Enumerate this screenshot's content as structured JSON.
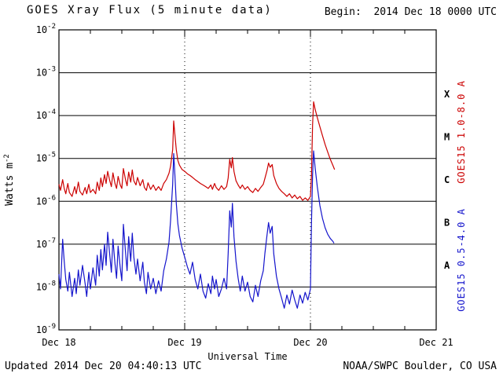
{
  "header": {
    "title": "GOES Xray Flux (5 minute data)",
    "begin": "Begin:  2014 Dec 18 0000 UTC"
  },
  "footer": {
    "updated": "Updated 2014 Dec 20 04:40:13 UTC",
    "source": "NOAA/SWPC Boulder, CO USA"
  },
  "chart_data": {
    "type": "line",
    "title": "GOES Xray Flux (5 minute data)",
    "xlabel": "Universal Time",
    "ylabel": "Watts m-2",
    "ylabel_parts": [
      "Watts m",
      "-2"
    ],
    "y_tick_base": "10",
    "y_tick_exponents": [
      -2,
      -3,
      -4,
      -5,
      -6,
      -7,
      -8,
      -9
    ],
    "y_log_range": [
      -9,
      -2
    ],
    "x_range_hours": [
      0,
      72
    ],
    "x_tick_hours": [
      0,
      24,
      48,
      72
    ],
    "x_ticks": [
      "Dec 18",
      "Dec 19",
      "Dec 20",
      "Dec 21"
    ],
    "day_boundary_lines_hours": [
      24,
      48
    ],
    "flare_class_labels": [
      "X",
      "M",
      "C",
      "B",
      "A"
    ],
    "flare_class_mid_exponents": [
      -3.5,
      -4.5,
      -5.5,
      -6.5,
      -7.5
    ],
    "legend_position": "right",
    "grid": "horizontal-solid, day-boundaries-dotted",
    "series": [
      {
        "name": "GOES15 1.0-8.0 A",
        "color": "#cc0000",
        "points": [
          [
            0,
            2.5e-06
          ],
          [
            0.3,
            1.8e-06
          ],
          [
            0.7,
            3.2e-06
          ],
          [
            1,
            2e-06
          ],
          [
            1.3,
            1.5e-06
          ],
          [
            1.7,
            2.6e-06
          ],
          [
            2,
            1.6e-06
          ],
          [
            2.5,
            1.3e-06
          ],
          [
            3,
            2.2e-06
          ],
          [
            3.3,
            1.5e-06
          ],
          [
            3.7,
            2.8e-06
          ],
          [
            4,
            1.7e-06
          ],
          [
            4.5,
            1.4e-06
          ],
          [
            5,
            2.1e-06
          ],
          [
            5.3,
            1.5e-06
          ],
          [
            5.7,
            2.5e-06
          ],
          [
            6,
            1.6e-06
          ],
          [
            6.5,
            1.9e-06
          ],
          [
            7,
            1.5e-06
          ],
          [
            7.3,
            2.8e-06
          ],
          [
            7.7,
            1.8e-06
          ],
          [
            8,
            3.5e-06
          ],
          [
            8.3,
            2.2e-06
          ],
          [
            8.7,
            4.2e-06
          ],
          [
            9,
            2.6e-06
          ],
          [
            9.3,
            5e-06
          ],
          [
            9.7,
            3e-06
          ],
          [
            10,
            2.2e-06
          ],
          [
            10.3,
            4.6e-06
          ],
          [
            10.7,
            2.6e-06
          ],
          [
            11,
            2e-06
          ],
          [
            11.3,
            3.8e-06
          ],
          [
            11.7,
            2.4e-06
          ],
          [
            12,
            2e-06
          ],
          [
            12.3,
            5.8e-06
          ],
          [
            12.7,
            3.2e-06
          ],
          [
            13,
            2.3e-06
          ],
          [
            13.3,
            4.8e-06
          ],
          [
            13.7,
            2.8e-06
          ],
          [
            14,
            5.4e-06
          ],
          [
            14.3,
            3e-06
          ],
          [
            14.7,
            2.4e-06
          ],
          [
            15,
            3.6e-06
          ],
          [
            15.5,
            2.3e-06
          ],
          [
            16,
            3.2e-06
          ],
          [
            16.3,
            2.1e-06
          ],
          [
            16.7,
            1.8e-06
          ],
          [
            17,
            2.7e-06
          ],
          [
            17.5,
            1.9e-06
          ],
          [
            18,
            2.4e-06
          ],
          [
            18.5,
            1.8e-06
          ],
          [
            19,
            2.2e-06
          ],
          [
            19.5,
            1.8e-06
          ],
          [
            20,
            2.6e-06
          ],
          [
            20.5,
            3.2e-06
          ],
          [
            21,
            4.5e-06
          ],
          [
            21.3,
            6.5e-06
          ],
          [
            21.7,
            1.6e-05
          ],
          [
            21.9,
            7.5e-05
          ],
          [
            22.1,
            4e-05
          ],
          [
            22.4,
            1.6e-05
          ],
          [
            22.7,
            9e-06
          ],
          [
            23,
            7e-06
          ],
          [
            23.5,
            5.5e-06
          ],
          [
            24,
            5e-06
          ],
          [
            24.5,
            4.4e-06
          ],
          [
            25,
            4e-06
          ],
          [
            25.5,
            3.6e-06
          ],
          [
            26,
            3.2e-06
          ],
          [
            26.5,
            2.9e-06
          ],
          [
            27,
            2.6e-06
          ],
          [
            27.5,
            2.4e-06
          ],
          [
            28,
            2.2e-06
          ],
          [
            28.5,
            2e-06
          ],
          [
            29,
            2.4e-06
          ],
          [
            29.3,
            1.9e-06
          ],
          [
            29.7,
            2.6e-06
          ],
          [
            30,
            2.1e-06
          ],
          [
            30.5,
            1.8e-06
          ],
          [
            31,
            2.3e-06
          ],
          [
            31.5,
            1.9e-06
          ],
          [
            32,
            2.2e-06
          ],
          [
            32.3,
            3.5e-06
          ],
          [
            32.6,
            9.5e-06
          ],
          [
            32.9,
            6e-06
          ],
          [
            33.1,
            1.05e-05
          ],
          [
            33.4,
            5e-06
          ],
          [
            33.8,
            3e-06
          ],
          [
            34.2,
            2.4e-06
          ],
          [
            34.6,
            2e-06
          ],
          [
            35,
            2.4e-06
          ],
          [
            35.5,
            1.9e-06
          ],
          [
            36,
            2.2e-06
          ],
          [
            36.5,
            1.8e-06
          ],
          [
            37,
            1.6e-06
          ],
          [
            37.5,
            2e-06
          ],
          [
            38,
            1.7e-06
          ],
          [
            38.5,
            2.1e-06
          ],
          [
            39,
            2.5e-06
          ],
          [
            39.3,
            3.4e-06
          ],
          [
            39.7,
            5.2e-06
          ],
          [
            40,
            7.8e-06
          ],
          [
            40.3,
            6.2e-06
          ],
          [
            40.7,
            7.2e-06
          ],
          [
            41,
            4e-06
          ],
          [
            41.5,
            2.6e-06
          ],
          [
            42,
            2e-06
          ],
          [
            42.5,
            1.7e-06
          ],
          [
            43,
            1.5e-06
          ],
          [
            43.5,
            1.3e-06
          ],
          [
            44,
            1.5e-06
          ],
          [
            44.5,
            1.2e-06
          ],
          [
            45,
            1.4e-06
          ],
          [
            45.5,
            1.15e-06
          ],
          [
            46,
            1.3e-06
          ],
          [
            46.5,
            1.05e-06
          ],
          [
            47,
            1.2e-06
          ],
          [
            47.5,
            1.05e-06
          ],
          [
            48,
            1.3e-06
          ],
          [
            48.2,
            4e-06
          ],
          [
            48.4,
            6e-05
          ],
          [
            48.6,
            0.00021
          ],
          [
            48.9,
            0.00014
          ],
          [
            49.3,
            9e-05
          ],
          [
            49.8,
            5.5e-05
          ],
          [
            50.3,
            3.4e-05
          ],
          [
            50.8,
            2.1e-05
          ],
          [
            51.3,
            1.4e-05
          ],
          [
            51.8,
            9.5e-06
          ],
          [
            52.3,
            6.8e-06
          ],
          [
            52.6,
            5.5e-06
          ]
        ]
      },
      {
        "name": "GOES15 0.5-4.0 A",
        "color": "#1414cc",
        "points": [
          [
            0,
            2e-08
          ],
          [
            0.3,
            9e-09
          ],
          [
            0.7,
            1.3e-07
          ],
          [
            1,
            4e-08
          ],
          [
            1.3,
            1.5e-08
          ],
          [
            1.7,
            8e-09
          ],
          [
            2,
            2.2e-08
          ],
          [
            2.5,
            6e-09
          ],
          [
            3,
            1.6e-08
          ],
          [
            3.3,
            7e-09
          ],
          [
            3.7,
            2.5e-08
          ],
          [
            4,
            1.1e-08
          ],
          [
            4.5,
            3.2e-08
          ],
          [
            5,
            1.2e-08
          ],
          [
            5.3,
            6e-09
          ],
          [
            5.7,
            2.2e-08
          ],
          [
            6,
            9e-09
          ],
          [
            6.5,
            2.8e-08
          ],
          [
            7,
            1.1e-08
          ],
          [
            7.3,
            5.5e-08
          ],
          [
            7.7,
            1.8e-08
          ],
          [
            8,
            7.5e-08
          ],
          [
            8.3,
            2.5e-08
          ],
          [
            8.7,
            1e-07
          ],
          [
            9,
            3.2e-08
          ],
          [
            9.3,
            1.9e-07
          ],
          [
            9.7,
            5.5e-08
          ],
          [
            10,
            2.2e-08
          ],
          [
            10.3,
            1.3e-07
          ],
          [
            10.7,
            3.5e-08
          ],
          [
            11,
            1.6e-08
          ],
          [
            11.3,
            9e-08
          ],
          [
            11.7,
            2.8e-08
          ],
          [
            12,
            1.4e-08
          ],
          [
            12.3,
            2.9e-07
          ],
          [
            12.7,
            6.5e-08
          ],
          [
            13,
            2.4e-08
          ],
          [
            13.3,
            1.5e-07
          ],
          [
            13.7,
            4e-08
          ],
          [
            14,
            1.8e-07
          ],
          [
            14.3,
            5e-08
          ],
          [
            14.7,
            2e-08
          ],
          [
            15,
            4.5e-08
          ],
          [
            15.5,
            1.4e-08
          ],
          [
            16,
            3.8e-08
          ],
          [
            16.3,
            1.3e-08
          ],
          [
            16.7,
            7e-09
          ],
          [
            17,
            2.2e-08
          ],
          [
            17.5,
            9e-09
          ],
          [
            18,
            1.6e-08
          ],
          [
            18.5,
            7e-09
          ],
          [
            19,
            1.4e-08
          ],
          [
            19.5,
            8e-09
          ],
          [
            20,
            2.4e-08
          ],
          [
            20.5,
            4.5e-08
          ],
          [
            21,
            1.1e-07
          ],
          [
            21.3,
            3.5e-07
          ],
          [
            21.7,
            2.5e-06
          ],
          [
            21.9,
            1.3e-05
          ],
          [
            22.1,
            5e-06
          ],
          [
            22.4,
            9e-07
          ],
          [
            22.7,
            3e-07
          ],
          [
            23,
            1.6e-07
          ],
          [
            23.5,
            8e-08
          ],
          [
            24,
            5e-08
          ],
          [
            24.5,
            3e-08
          ],
          [
            25,
            2e-08
          ],
          [
            25.5,
            3.8e-08
          ],
          [
            26,
            1.5e-08
          ],
          [
            26.5,
            9e-09
          ],
          [
            27,
            2e-08
          ],
          [
            27.5,
            8e-09
          ],
          [
            28,
            5.5e-09
          ],
          [
            28.5,
            1.2e-08
          ],
          [
            29,
            7e-09
          ],
          [
            29.3,
            1.8e-08
          ],
          [
            29.7,
            9e-09
          ],
          [
            30,
            1.5e-08
          ],
          [
            30.5,
            6e-09
          ],
          [
            31,
            9e-09
          ],
          [
            31.5,
            1.6e-08
          ],
          [
            32,
            9e-09
          ],
          [
            32.3,
            6e-08
          ],
          [
            32.6,
            6e-07
          ],
          [
            32.9,
            2.5e-07
          ],
          [
            33.1,
            9e-07
          ],
          [
            33.4,
            1.5e-07
          ],
          [
            33.8,
            4e-08
          ],
          [
            34.2,
            1.6e-08
          ],
          [
            34.6,
            8e-09
          ],
          [
            35,
            1.8e-08
          ],
          [
            35.5,
            8e-09
          ],
          [
            36,
            1.3e-08
          ],
          [
            36.5,
            6e-09
          ],
          [
            37,
            4.5e-09
          ],
          [
            37.5,
            1.1e-08
          ],
          [
            38,
            6e-09
          ],
          [
            38.5,
            1.4e-08
          ],
          [
            39,
            2.4e-08
          ],
          [
            39.3,
            6e-08
          ],
          [
            39.7,
            1.6e-07
          ],
          [
            40,
            3.2e-07
          ],
          [
            40.3,
            1.8e-07
          ],
          [
            40.7,
            2.6e-07
          ],
          [
            41,
            6e-08
          ],
          [
            41.5,
            1.8e-08
          ],
          [
            42,
            9e-09
          ],
          [
            42.5,
            5.5e-09
          ],
          [
            43,
            3.2e-09
          ],
          [
            43.5,
            6.5e-09
          ],
          [
            44,
            4e-09
          ],
          [
            44.5,
            8.5e-09
          ],
          [
            45,
            5e-09
          ],
          [
            45.5,
            3.2e-09
          ],
          [
            46,
            6.5e-09
          ],
          [
            46.5,
            4.2e-09
          ],
          [
            47,
            7.5e-09
          ],
          [
            47.5,
            5e-09
          ],
          [
            48,
            9e-09
          ],
          [
            48.2,
            3e-07
          ],
          [
            48.4,
            4e-06
          ],
          [
            48.6,
            1.5e-05
          ],
          [
            48.9,
            6e-06
          ],
          [
            49.3,
            2.2e-06
          ],
          [
            49.8,
            8e-07
          ],
          [
            50.3,
            4e-07
          ],
          [
            50.8,
            2.4e-07
          ],
          [
            51.3,
            1.7e-07
          ],
          [
            51.8,
            1.35e-07
          ],
          [
            52.3,
            1.15e-07
          ],
          [
            52.5,
            1.05e-07
          ]
        ]
      }
    ]
  }
}
